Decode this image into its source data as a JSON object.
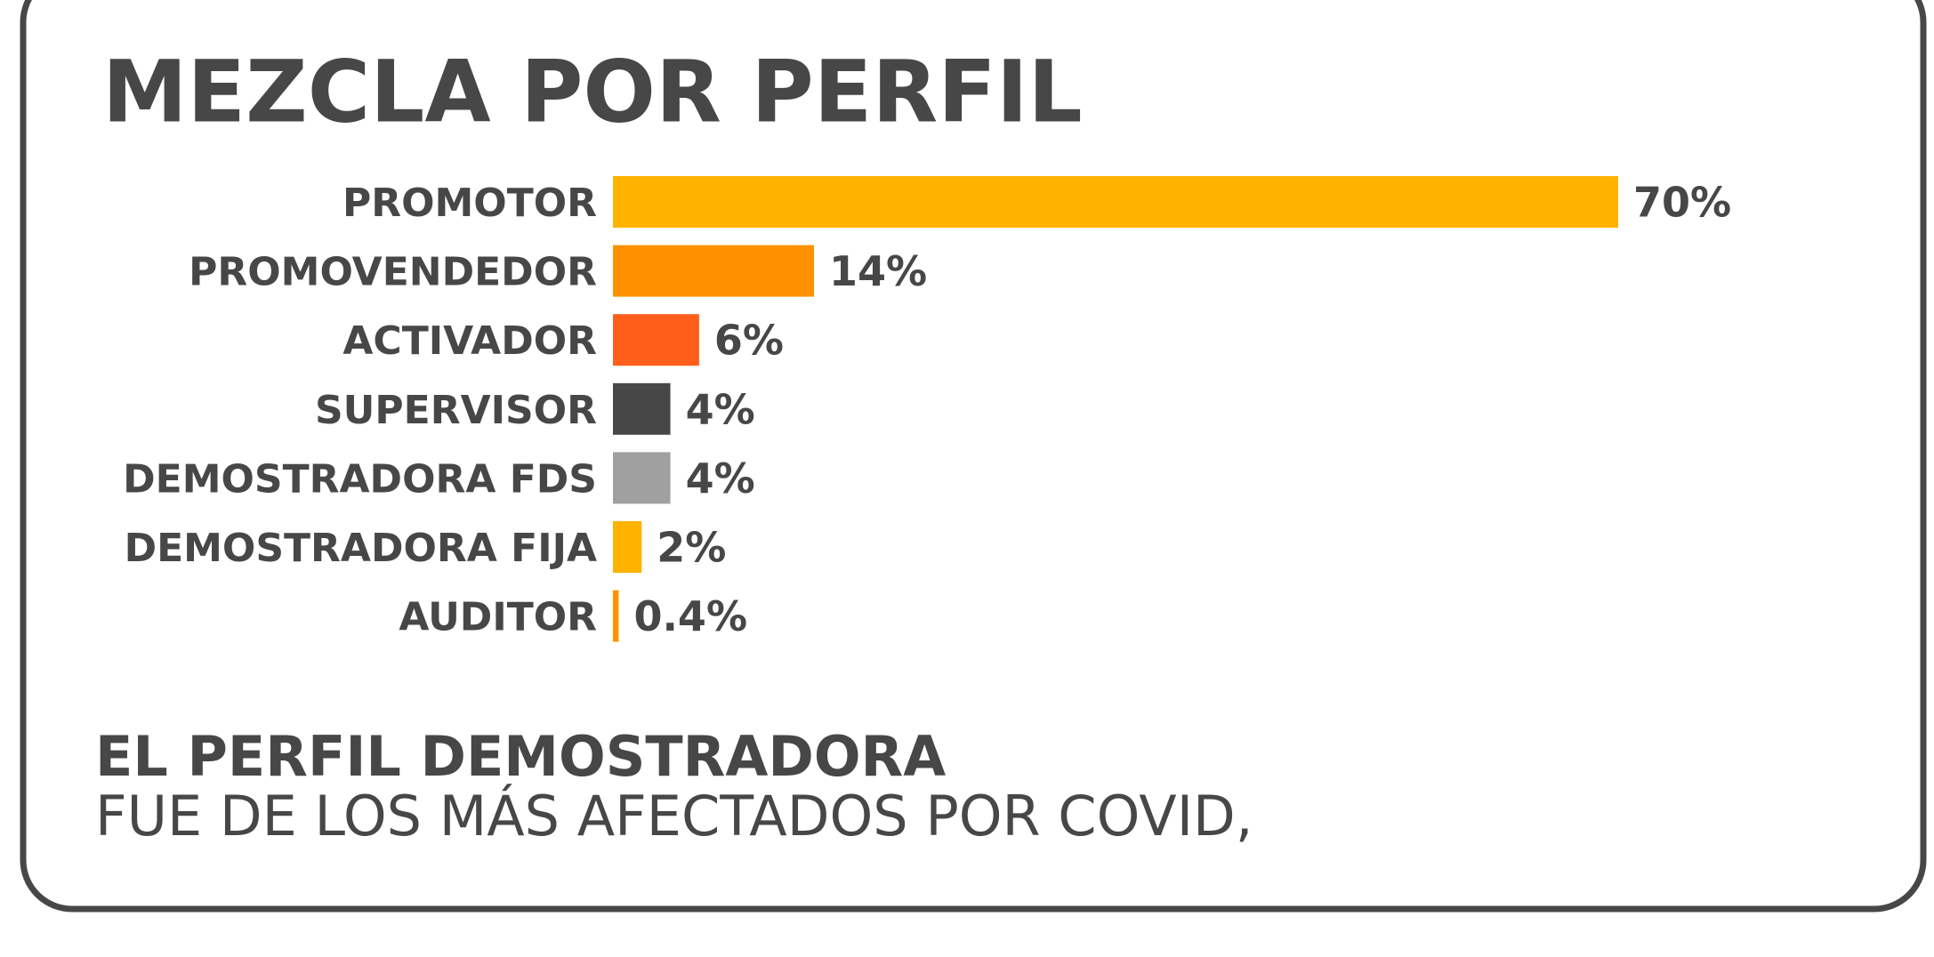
{
  "chart_data": {
    "type": "bar",
    "orientation": "horizontal",
    "title": "MEZCLA POR PERFIL",
    "categories": [
      "PROMOTOR",
      "PROMOVENDEDOR",
      "ACTIVADOR",
      "SUPERVISOR",
      "DEMOSTRADORA FDS",
      "DEMOSTRADORA FIJA",
      "AUDITOR"
    ],
    "values": [
      70,
      14,
      6,
      4,
      4,
      2,
      0.4
    ],
    "value_labels": [
      "70%",
      "14%",
      "6%",
      "4%",
      "4%",
      "2%",
      "0.4%"
    ],
    "colors": [
      "#ffb300",
      "#ff9100",
      "#ff5e1a",
      "#474747",
      "#a0a0a0",
      "#ffb300",
      "#ff9100"
    ],
    "annotations": [
      "EL PERFIL DEMOSTRADORA",
      "FUE DE LOS MÁS AFECTADOS POR COVID,"
    ]
  }
}
